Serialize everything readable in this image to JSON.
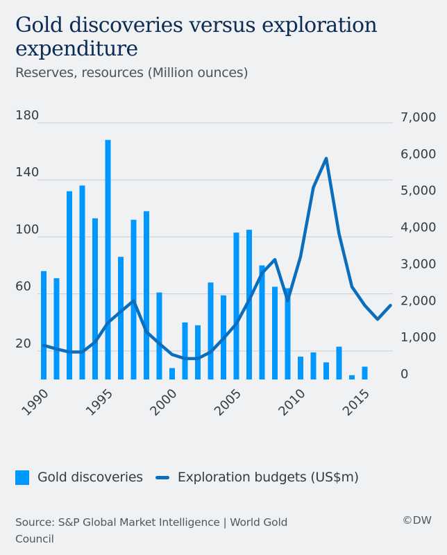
{
  "header": {
    "title": "Gold discoveries versus exploration expenditure",
    "subtitle": "Reserves, resources (Million ounces)"
  },
  "legend": {
    "bars_label": "Gold discoveries",
    "line_label": "Exploration budgets (US$m)"
  },
  "footer": {
    "source": "Source: S&P Global Market Intelligence | World Gold Council",
    "copyright": "©DW"
  },
  "colors": {
    "bars": "#0098ff",
    "line": "#0a6ebd",
    "grid": "#c9ced4",
    "background": "#eff1f3"
  },
  "chart_data": {
    "type": "bar",
    "title": "Gold discoveries versus exploration expenditure",
    "subtitle": "Reserves, resources (Million ounces)",
    "xlabel": "",
    "ylabel": "Reserves, resources (Million ounces)",
    "y2label": "Exploration budgets (US$m)",
    "ylim": [
      0,
      180
    ],
    "y2lim": [
      0,
      7000
    ],
    "yticks": [
      20,
      60,
      100,
      140,
      180
    ],
    "ytick_labels": [
      "20",
      "60",
      "100",
      "140",
      "180"
    ],
    "y2ticks": [
      0,
      1000,
      2000,
      3000,
      4000,
      5000,
      6000,
      7000
    ],
    "y2tick_labels": [
      "0",
      "1,000",
      "2,000",
      "3,000",
      "4,000",
      "5,000",
      "6,000",
      "7,000"
    ],
    "xticks": [
      1990,
      1995,
      2000,
      2005,
      2010,
      2015
    ],
    "xtick_labels": [
      "1990",
      "1995",
      "2000",
      "2005",
      "2010",
      "2015"
    ],
    "xlim": [
      1990,
      2017
    ],
    "grid": true,
    "legend_position": "bottom",
    "series": [
      {
        "name": "Gold discoveries",
        "type": "bar",
        "axis": "left",
        "x": [
          1990,
          1991,
          1992,
          1993,
          1994,
          1995,
          1996,
          1997,
          1998,
          1999,
          2000,
          2001,
          2002,
          2003,
          2004,
          2005,
          2006,
          2007,
          2008,
          2009,
          2010,
          2011,
          2012,
          2013,
          2014,
          2015
        ],
        "values": [
          76,
          71,
          132,
          136,
          113,
          168,
          86,
          112,
          118,
          61,
          8,
          40,
          38,
          68,
          59,
          103,
          105,
          80,
          65,
          64,
          16,
          19,
          12,
          23,
          3,
          9
        ]
      },
      {
        "name": "Exploration budgets (US$m)",
        "type": "line",
        "axis": "right",
        "x": [
          1990,
          1991,
          1992,
          1993,
          1994,
          1995,
          1996,
          1997,
          1998,
          1999,
          2000,
          2001,
          2002,
          2003,
          2004,
          2005,
          2006,
          2007,
          2008,
          2009,
          2010,
          2011,
          2012,
          2013,
          2014,
          2015,
          2016,
          2017
        ],
        "values": [
          930,
          830,
          750,
          750,
          1020,
          1550,
          1850,
          2150,
          1300,
          980,
          680,
          570,
          570,
          750,
          1120,
          1520,
          2170,
          2900,
          3270,
          2150,
          3350,
          5240,
          6030,
          3970,
          2530,
          2020,
          1640,
          2020
        ]
      }
    ]
  }
}
